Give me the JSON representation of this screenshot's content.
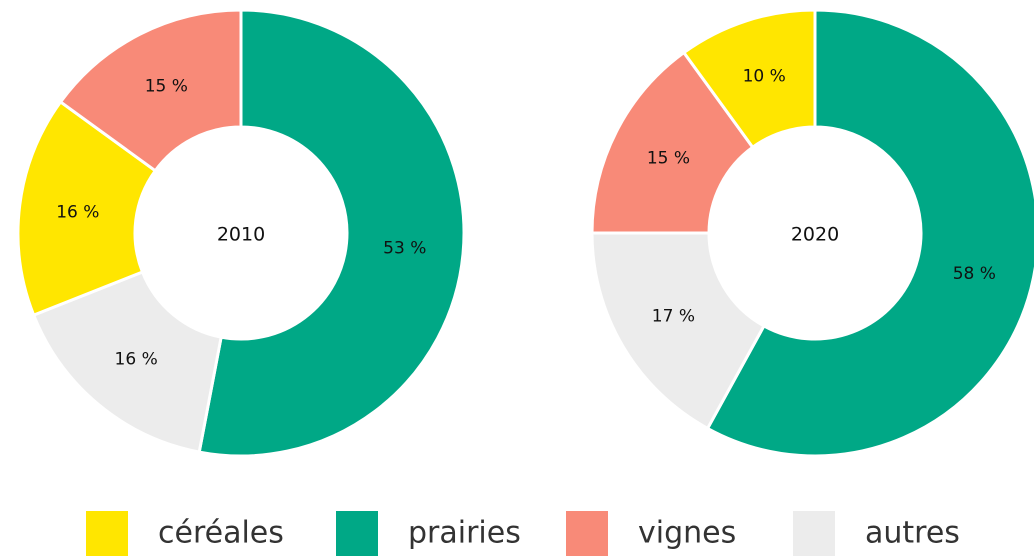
{
  "chart_data": [
    {
      "type": "pie",
      "center_label": "2010",
      "categories": [
        "prairies",
        "autres",
        "céréales",
        "vignes"
      ],
      "values": [
        53,
        16,
        16,
        15
      ],
      "value_labels": [
        "53 %",
        "16 %",
        "16 %",
        "15 %"
      ],
      "colors": [
        "#00a886",
        "#ececec",
        "#ffe600",
        "#f88a78"
      ]
    },
    {
      "type": "pie",
      "center_label": "2020",
      "categories": [
        "prairies",
        "autres",
        "vignes",
        "céréales"
      ],
      "values": [
        58,
        17,
        15,
        10
      ],
      "value_labels": [
        "58 %",
        "17 %",
        "15 %",
        "10 %"
      ],
      "colors": [
        "#00a886",
        "#ececec",
        "#f88a78",
        "#ffe600"
      ]
    }
  ]
}
